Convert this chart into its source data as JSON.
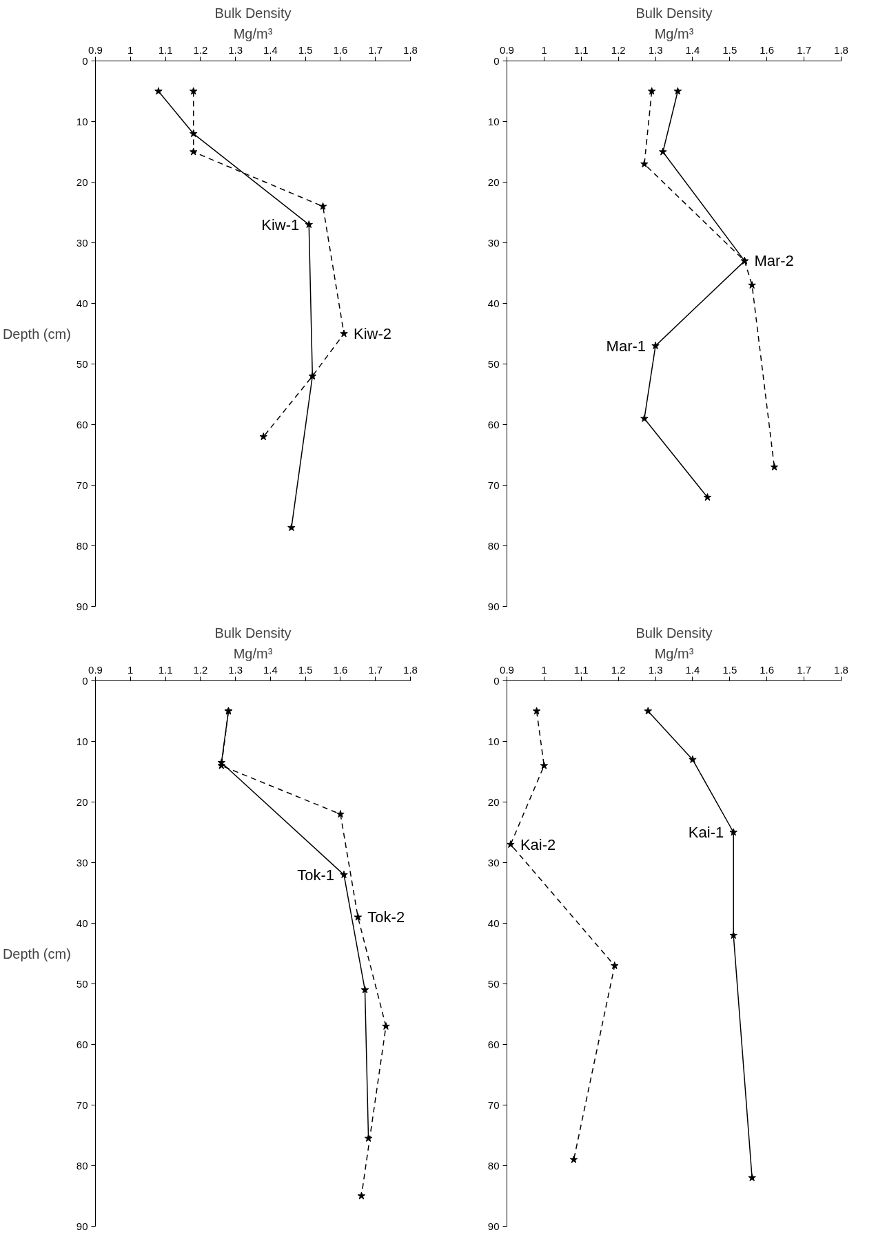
{
  "chart_data": [
    {
      "type": "line",
      "title": "Bulk Density",
      "xlabel": "Mg/m³",
      "ylabel": "Depth (cm)",
      "xlim": [
        0.9,
        1.8
      ],
      "xticks": [
        0.9,
        1,
        1.1,
        1.2,
        1.3,
        1.4,
        1.5,
        1.6,
        1.7,
        1.8
      ],
      "ylim": [
        90,
        0
      ],
      "yticks": [
        0,
        10,
        20,
        30,
        40,
        50,
        60,
        70,
        80,
        90
      ],
      "marker": "star",
      "grid": false,
      "series": [
        {
          "name": "Kiw-1",
          "color": "#000000",
          "line_style": "solid",
          "x": [
            1.08,
            1.18,
            1.51,
            1.52,
            1.46
          ],
          "values": [
            5,
            12,
            27,
            52,
            77
          ]
        },
        {
          "name": "Kiw-2",
          "color": "#000000",
          "line_style": "dashed",
          "x": [
            1.18,
            1.18,
            1.55,
            1.61,
            1.52,
            1.38
          ],
          "values": [
            5,
            15,
            24,
            45,
            52,
            62
          ]
        }
      ]
    },
    {
      "type": "line",
      "title": "Bulk Density",
      "xlabel": "Mg/m³",
      "xlim": [
        0.9,
        1.8
      ],
      "xticks": [
        0.9,
        1,
        1.1,
        1.2,
        1.3,
        1.4,
        1.5,
        1.6,
        1.7,
        1.8
      ],
      "ylim": [
        90,
        0
      ],
      "yticks": [
        0,
        10,
        20,
        30,
        40,
        50,
        60,
        70,
        80,
        90
      ],
      "marker": "star",
      "grid": false,
      "series": [
        {
          "name": "Mar-1",
          "color": "#000000",
          "line_style": "solid",
          "x": [
            1.36,
            1.32,
            1.54,
            1.3,
            1.27,
            1.44
          ],
          "values": [
            5,
            15,
            33,
            47,
            59,
            72
          ]
        },
        {
          "name": "Mar-2",
          "color": "#000000",
          "line_style": "dashed",
          "x": [
            1.29,
            1.27,
            1.54,
            1.56,
            1.62
          ],
          "values": [
            5,
            17,
            33,
            37,
            67
          ]
        }
      ]
    },
    {
      "type": "line",
      "title": "Bulk Density",
      "xlabel": "Mg/m³",
      "ylabel": "Depth (cm)",
      "xlim": [
        0.9,
        1.8
      ],
      "xticks": [
        0.9,
        1,
        1.1,
        1.2,
        1.3,
        1.4,
        1.5,
        1.6,
        1.7,
        1.8
      ],
      "ylim": [
        90,
        0
      ],
      "yticks": [
        0,
        10,
        20,
        30,
        40,
        50,
        60,
        70,
        80,
        90
      ],
      "marker": "star",
      "grid": false,
      "series": [
        {
          "name": "Tok-1",
          "color": "#000000",
          "line_style": "solid",
          "x": [
            1.28,
            1.26,
            1.61,
            1.67,
            1.68
          ],
          "values": [
            5,
            13.5,
            32,
            51,
            75.5
          ]
        },
        {
          "name": "Tok-2",
          "color": "#000000",
          "line_style": "dashed",
          "x": [
            1.28,
            1.26,
            1.6,
            1.65,
            1.73,
            1.66
          ],
          "values": [
            5,
            14,
            22,
            39,
            57,
            85
          ]
        }
      ]
    },
    {
      "type": "line",
      "title": "Bulk Density",
      "xlabel": "Mg/m³",
      "xlim": [
        0.9,
        1.8
      ],
      "xticks": [
        0.9,
        1,
        1.1,
        1.2,
        1.3,
        1.4,
        1.5,
        1.6,
        1.7,
        1.8
      ],
      "ylim": [
        90,
        0
      ],
      "yticks": [
        0,
        10,
        20,
        30,
        40,
        50,
        60,
        70,
        80,
        90
      ],
      "marker": "star",
      "grid": false,
      "series": [
        {
          "name": "Kai-1",
          "color": "#000000",
          "line_style": "solid",
          "x": [
            1.28,
            1.4,
            1.51,
            1.51,
            1.56
          ],
          "values": [
            5,
            13,
            25,
            42,
            82
          ]
        },
        {
          "name": "Kai-2",
          "color": "#000000",
          "line_style": "dashed",
          "x": [
            0.98,
            1.0,
            0.91,
            1.19,
            1.08
          ],
          "values": [
            5,
            14,
            27,
            47,
            79
          ]
        }
      ]
    }
  ]
}
